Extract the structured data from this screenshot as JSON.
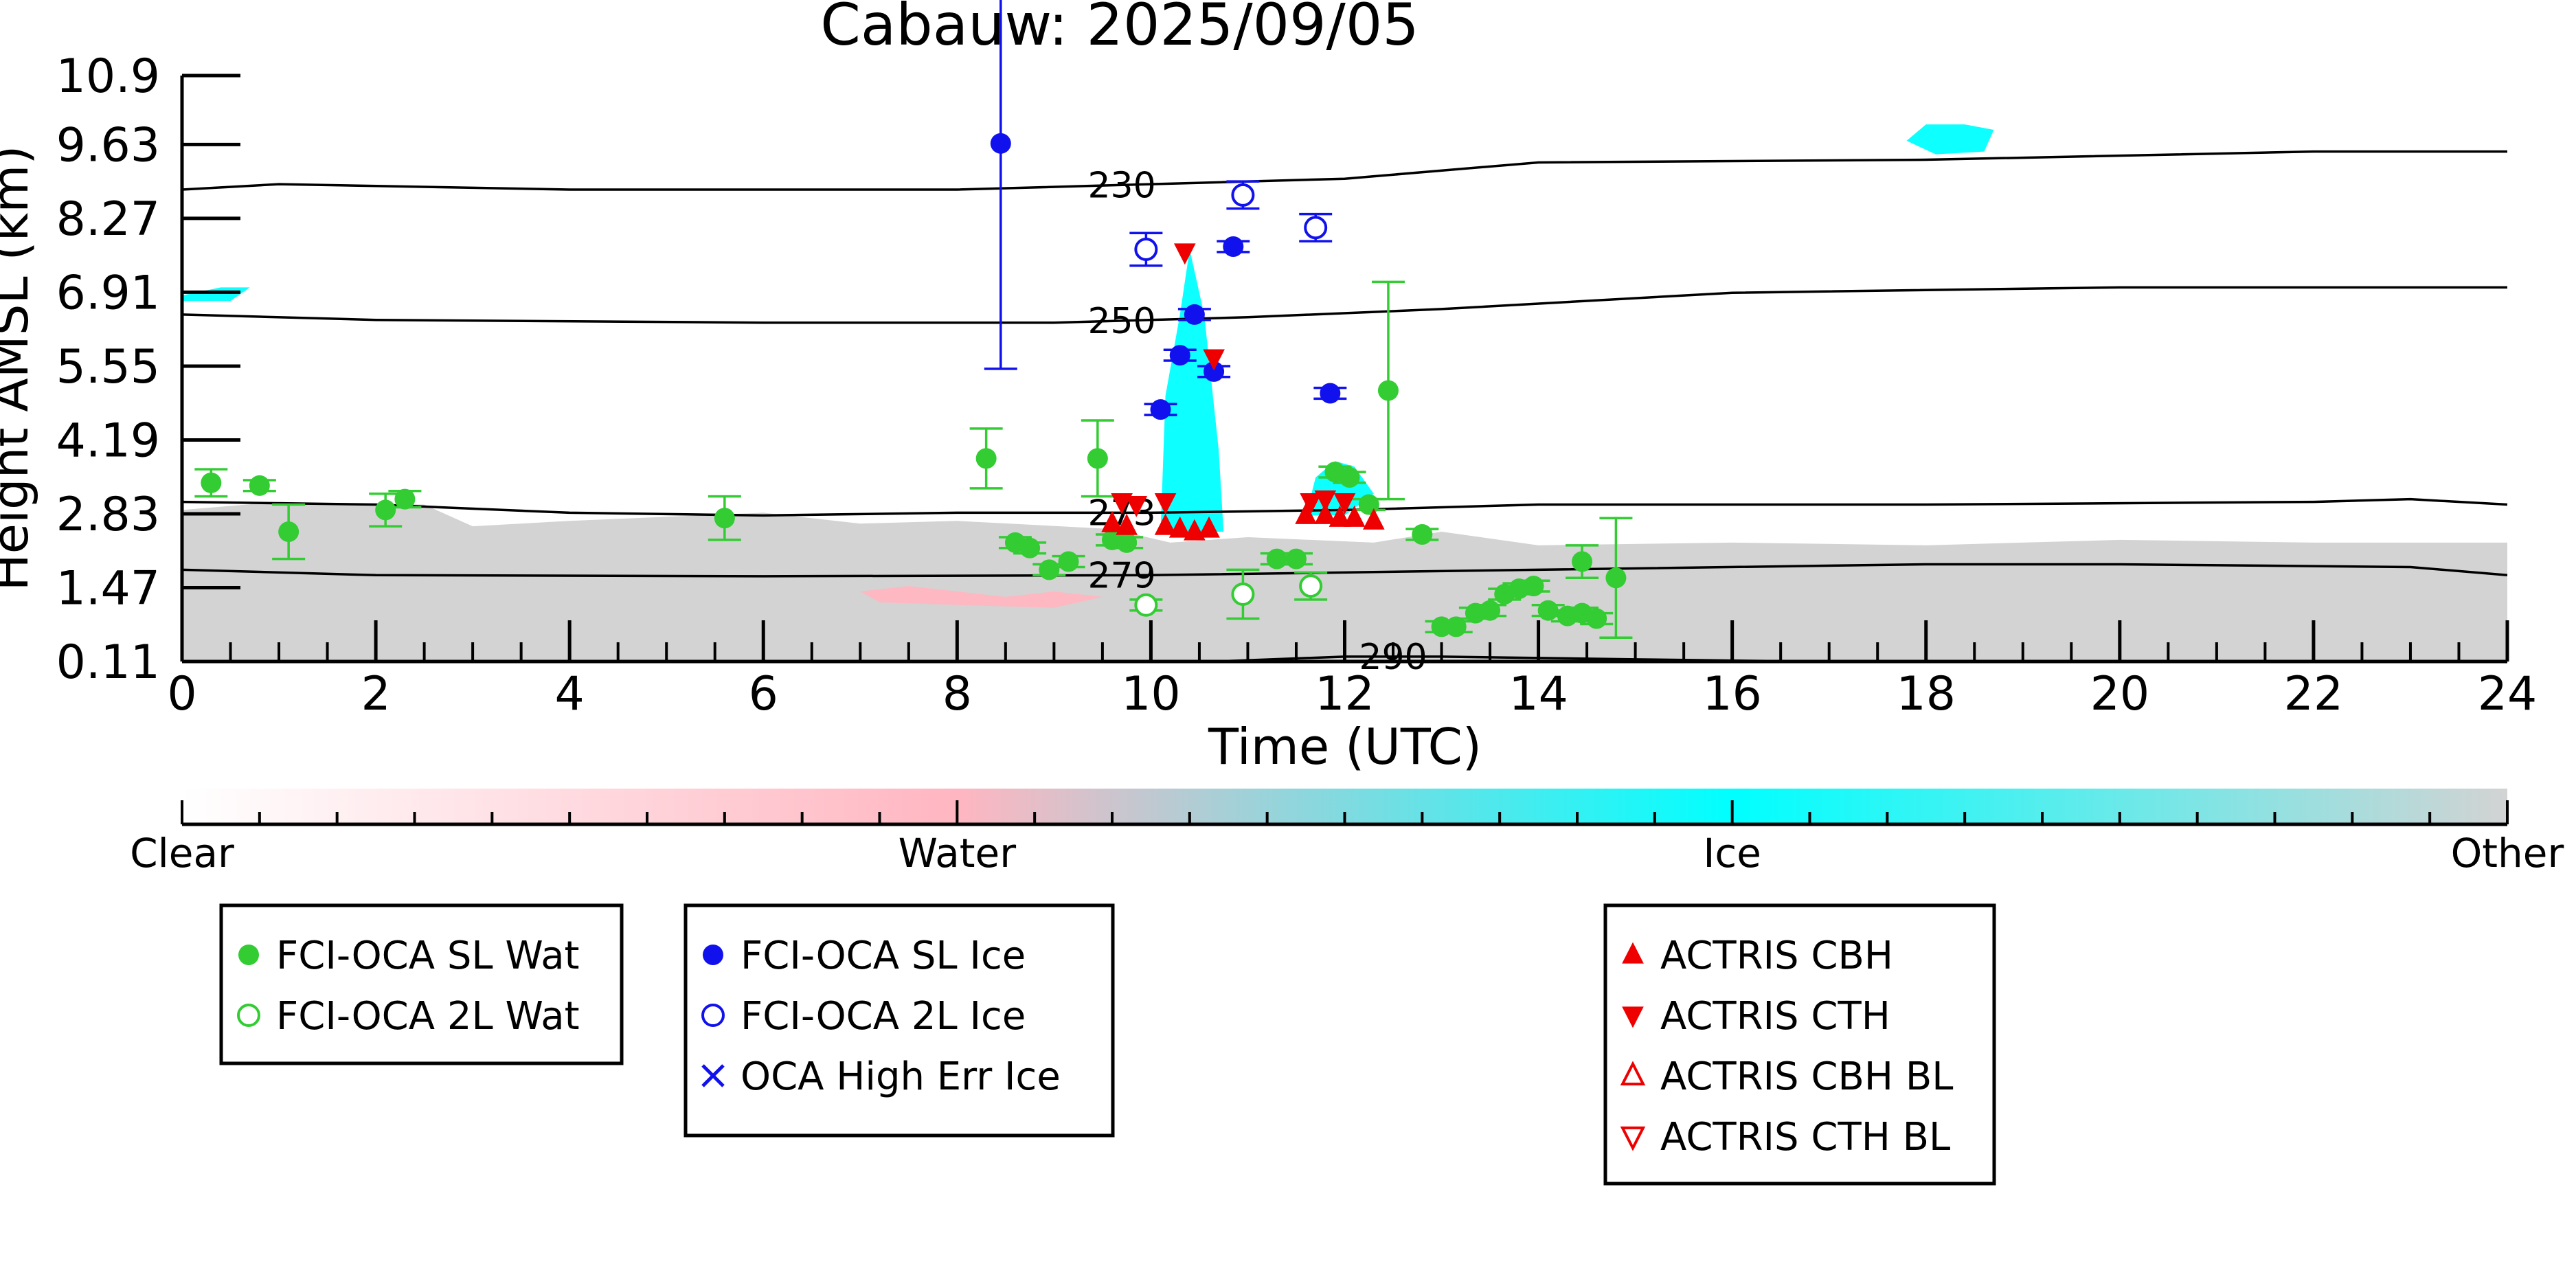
{
  "chart_data": {
    "type": "scatter",
    "title": "Cabauw: 2025/09/05",
    "xlabel": "Time (UTC)",
    "ylabel": "Height AMSL (km)",
    "xlim": [
      0,
      24
    ],
    "ylim": [
      0.11,
      10.9
    ],
    "x_ticks": [
      0,
      2,
      4,
      6,
      8,
      10,
      12,
      14,
      16,
      18,
      20,
      22,
      24
    ],
    "y_ticks": [
      "0.11",
      "1.47",
      "2.83",
      "4.19",
      "5.55",
      "6.91",
      "8.27",
      "9.63",
      "10.9"
    ],
    "grid": false,
    "colors": {
      "sl_wat": "#33cc33",
      "sl_ice": "#1111ee",
      "actris": "#ee0000",
      "ice_bg": "#00ffff",
      "water_bg": "#ffb6c1",
      "other_bg": "#d3d3d3",
      "contour": "#000000"
    },
    "colorbar": {
      "labels": [
        "Clear",
        "Water",
        "Ice",
        "Other"
      ],
      "stops": [
        "#ffffff",
        "#ffb6c1",
        "#00ffff",
        "#d3d3d3"
      ]
    },
    "contours": [
      {
        "label": "230",
        "label_x": 9.7,
        "points": [
          [
            0,
            8.8
          ],
          [
            1,
            8.9
          ],
          [
            4,
            8.8
          ],
          [
            8,
            8.8
          ],
          [
            10,
            8.9
          ],
          [
            12,
            9.0
          ],
          [
            14,
            9.3
          ],
          [
            18,
            9.35
          ],
          [
            22,
            9.5
          ],
          [
            24,
            9.5
          ]
        ]
      },
      {
        "label": "250",
        "label_x": 9.7,
        "points": [
          [
            0,
            6.5
          ],
          [
            2,
            6.4
          ],
          [
            6,
            6.35
          ],
          [
            9,
            6.35
          ],
          [
            11,
            6.45
          ],
          [
            13,
            6.6
          ],
          [
            16,
            6.9
          ],
          [
            20,
            7.0
          ],
          [
            24,
            7.0
          ]
        ]
      },
      {
        "label": "273",
        "label_x": 9.7,
        "points": [
          [
            0,
            3.05
          ],
          [
            2,
            3.0
          ],
          [
            4,
            2.85
          ],
          [
            6,
            2.8
          ],
          [
            8,
            2.85
          ],
          [
            10,
            2.85
          ],
          [
            12,
            2.9
          ],
          [
            14,
            3.0
          ],
          [
            18,
            3.0
          ],
          [
            22,
            3.05
          ],
          [
            23,
            3.1
          ],
          [
            24,
            3.0
          ]
        ]
      },
      {
        "label": "279",
        "label_x": 9.7,
        "points": [
          [
            0,
            1.8
          ],
          [
            2,
            1.7
          ],
          [
            6,
            1.68
          ],
          [
            10,
            1.7
          ],
          [
            14,
            1.8
          ],
          [
            18,
            1.9
          ],
          [
            20,
            1.9
          ],
          [
            23,
            1.85
          ],
          [
            24,
            1.7
          ]
        ]
      },
      {
        "label": "290",
        "label_x": 12.5,
        "points": [
          [
            10.8,
            0.12
          ],
          [
            12,
            0.2
          ],
          [
            13,
            0.2
          ],
          [
            15,
            0.15
          ],
          [
            16.8,
            0.11
          ]
        ]
      }
    ],
    "series": [
      {
        "name": "FCI-OCA SL Wat",
        "marker": "filled-circle",
        "color": "#33cc33",
        "points": [
          {
            "x": 0.3,
            "y": 3.4,
            "err": 0.25
          },
          {
            "x": 0.8,
            "y": 3.35,
            "err": 0.1
          },
          {
            "x": 1.1,
            "y": 2.5,
            "err": 0.5
          },
          {
            "x": 2.1,
            "y": 2.9,
            "err": 0.3
          },
          {
            "x": 2.3,
            "y": 3.1,
            "err": 0.15
          },
          {
            "x": 5.6,
            "y": 2.75,
            "err": 0.4
          },
          {
            "x": 8.3,
            "y": 3.85,
            "err": 0.55
          },
          {
            "x": 8.6,
            "y": 2.3,
            "err": 0.1
          },
          {
            "x": 8.75,
            "y": 2.2,
            "err": 0.1
          },
          {
            "x": 8.95,
            "y": 1.8,
            "err": 0.1
          },
          {
            "x": 9.15,
            "y": 1.95,
            "err": 0.1
          },
          {
            "x": 9.45,
            "y": 3.85,
            "err": 0.7
          },
          {
            "x": 9.6,
            "y": 2.35,
            "err": 0.1
          },
          {
            "x": 9.75,
            "y": 2.3,
            "err": 0.1
          },
          {
            "x": 11.3,
            "y": 2.0,
            "err": 0.1
          },
          {
            "x": 11.5,
            "y": 2.0,
            "err": 0.1
          },
          {
            "x": 11.9,
            "y": 3.6,
            "err": 0.1
          },
          {
            "x": 12.05,
            "y": 3.5,
            "err": 0.1
          },
          {
            "x": 12.25,
            "y": 3.0,
            "err": 0.1
          },
          {
            "x": 12.45,
            "y": 5.1,
            "err": 2.0
          },
          {
            "x": 12.8,
            "y": 2.45,
            "err": 0.1
          },
          {
            "x": 13.0,
            "y": 0.75,
            "err": 0.1
          },
          {
            "x": 13.15,
            "y": 0.75,
            "err": 0.1
          },
          {
            "x": 13.35,
            "y": 1.0,
            "err": 0.1
          },
          {
            "x": 13.5,
            "y": 1.05,
            "err": 0.1
          },
          {
            "x": 13.65,
            "y": 1.35,
            "err": 0.1
          },
          {
            "x": 13.8,
            "y": 1.45,
            "err": 0.1
          },
          {
            "x": 13.95,
            "y": 1.5,
            "err": 0.1
          },
          {
            "x": 14.1,
            "y": 1.05,
            "err": 0.1
          },
          {
            "x": 14.3,
            "y": 0.95,
            "err": 0.1
          },
          {
            "x": 14.45,
            "y": 1.0,
            "err": 0.1
          },
          {
            "x": 14.45,
            "y": 1.95,
            "err": 0.3
          },
          {
            "x": 14.6,
            "y": 0.9,
            "err": 0.1
          },
          {
            "x": 14.8,
            "y": 1.65,
            "err": 1.1
          }
        ]
      },
      {
        "name": "FCI-OCA 2L Wat",
        "marker": "open-circle",
        "color": "#33cc33",
        "points": [
          {
            "x": 9.95,
            "y": 1.15,
            "err": 0.1
          },
          {
            "x": 10.95,
            "y": 1.35,
            "err": 0.45
          },
          {
            "x": 11.65,
            "y": 1.5,
            "err": 0.25
          }
        ]
      },
      {
        "name": "FCI-OCA SL Ice",
        "marker": "filled-circle",
        "color": "#1111ee",
        "points": [
          {
            "x": 8.45,
            "y": 9.65,
            "err": 4.15
          },
          {
            "x": 10.1,
            "y": 4.75,
            "err": 0.1
          },
          {
            "x": 10.3,
            "y": 5.75,
            "err": 0.1
          },
          {
            "x": 10.45,
            "y": 6.5,
            "err": 0.1
          },
          {
            "x": 10.65,
            "y": 5.45,
            "err": 0.1
          },
          {
            "x": 10.85,
            "y": 7.75,
            "err": 0.1
          },
          {
            "x": 11.85,
            "y": 5.05,
            "err": 0.1
          }
        ]
      },
      {
        "name": "FCI-OCA 2L Ice",
        "marker": "open-circle",
        "color": "#1111ee",
        "points": [
          {
            "x": 9.95,
            "y": 7.7,
            "err": 0.3
          },
          {
            "x": 10.95,
            "y": 8.7,
            "err": 0.25
          },
          {
            "x": 11.7,
            "y": 8.1,
            "err": 0.25
          }
        ]
      },
      {
        "name": "OCA High Err Ice",
        "marker": "x",
        "color": "#1111ee",
        "points": []
      },
      {
        "name": "ACTRIS CBH",
        "marker": "triangle-up",
        "color": "#ee0000",
        "points": [
          {
            "x": 9.6,
            "y": 2.65
          },
          {
            "x": 9.75,
            "y": 2.6
          },
          {
            "x": 10.15,
            "y": 2.6
          },
          {
            "x": 10.3,
            "y": 2.55
          },
          {
            "x": 10.45,
            "y": 2.5
          },
          {
            "x": 10.6,
            "y": 2.55
          },
          {
            "x": 11.6,
            "y": 2.8
          },
          {
            "x": 11.8,
            "y": 2.8
          },
          {
            "x": 11.95,
            "y": 2.75
          },
          {
            "x": 12.1,
            "y": 2.75
          },
          {
            "x": 12.3,
            "y": 2.7
          }
        ]
      },
      {
        "name": "ACTRIS CTH",
        "marker": "triangle-down",
        "color": "#ee0000",
        "points": [
          {
            "x": 9.7,
            "y": 3.05
          },
          {
            "x": 9.85,
            "y": 3.0
          },
          {
            "x": 10.15,
            "y": 3.05
          },
          {
            "x": 10.35,
            "y": 7.65
          },
          {
            "x": 10.65,
            "y": 5.7
          },
          {
            "x": 11.65,
            "y": 3.05
          },
          {
            "x": 11.8,
            "y": 3.1
          },
          {
            "x": 12.0,
            "y": 3.05
          }
        ]
      },
      {
        "name": "ACTRIS CBH BL",
        "marker": "open-triangle-up",
        "color": "#ee0000",
        "points": []
      },
      {
        "name": "ACTRIS CTH BL",
        "marker": "open-triangle-down",
        "color": "#ee0000",
        "points": []
      }
    ],
    "background_regions": [
      {
        "class": "Other",
        "color": "#d3d3d3",
        "points": [
          [
            0,
            0.11
          ],
          [
            0,
            2.9
          ],
          [
            1,
            3.05
          ],
          [
            2.5,
            3.0
          ],
          [
            3,
            2.6
          ],
          [
            4,
            2.7
          ],
          [
            6,
            2.85
          ],
          [
            7,
            2.65
          ],
          [
            8,
            2.7
          ],
          [
            9.6,
            2.55
          ],
          [
            10.2,
            2.3
          ],
          [
            11.0,
            2.4
          ],
          [
            12.3,
            2.3
          ],
          [
            13,
            2.5
          ],
          [
            14,
            2.25
          ],
          [
            16,
            2.3
          ],
          [
            18,
            2.25
          ],
          [
            20,
            2.35
          ],
          [
            22,
            2.3
          ],
          [
            24,
            2.3
          ],
          [
            24,
            0.11
          ]
        ]
      },
      {
        "class": "Water",
        "color": "#ffb6c1",
        "points": [
          [
            7.0,
            1.4
          ],
          [
            7.5,
            1.5
          ],
          [
            8.5,
            1.3
          ],
          [
            9.0,
            1.4
          ],
          [
            9.5,
            1.3
          ],
          [
            9.0,
            1.1
          ],
          [
            8.0,
            1.15
          ],
          [
            7.2,
            1.2
          ]
        ]
      },
      {
        "class": "Ice",
        "color": "#00ffff",
        "points": [
          [
            10.1,
            2.5
          ],
          [
            10.15,
            5.0
          ],
          [
            10.3,
            6.5
          ],
          [
            10.4,
            7.7
          ],
          [
            10.55,
            6.5
          ],
          [
            10.7,
            4.0
          ],
          [
            10.75,
            2.5
          ]
        ]
      },
      {
        "class": "Ice",
        "color": "#00ffff",
        "points": [
          [
            11.6,
            2.8
          ],
          [
            11.7,
            3.5
          ],
          [
            11.9,
            3.8
          ],
          [
            12.1,
            3.7
          ],
          [
            12.3,
            3.2
          ],
          [
            12.0,
            2.8
          ]
        ]
      },
      {
        "class": "Ice",
        "color": "#00ffff",
        "points": [
          [
            17.8,
            9.7
          ],
          [
            18.0,
            10.0
          ],
          [
            18.4,
            10.0
          ],
          [
            18.7,
            9.9
          ],
          [
            18.6,
            9.5
          ],
          [
            18.1,
            9.45
          ]
        ]
      },
      {
        "class": "Ice",
        "color": "#00ffff",
        "points": [
          [
            0,
            6.85
          ],
          [
            0.4,
            7.0
          ],
          [
            0.7,
            7.0
          ],
          [
            0.5,
            6.75
          ],
          [
            0,
            6.75
          ]
        ]
      }
    ],
    "legends": [
      {
        "entries": [
          "FCI-OCA SL Wat",
          "FCI-OCA 2L Wat"
        ]
      },
      {
        "entries": [
          "FCI-OCA SL Ice",
          "FCI-OCA 2L Ice",
          "OCA High Err Ice"
        ]
      },
      {
        "entries": [
          "ACTRIS CBH",
          "ACTRIS CTH",
          "ACTRIS CBH BL",
          "ACTRIS CTH BL"
        ]
      }
    ]
  }
}
